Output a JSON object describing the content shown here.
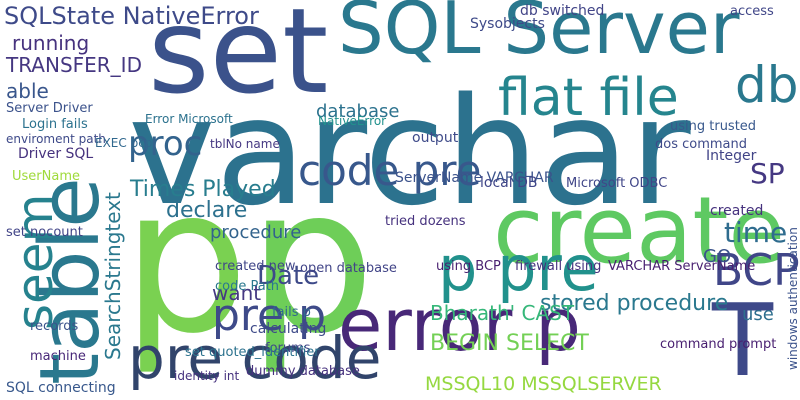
{
  "words": [
    {
      "text": "varchar"
    },
    {
      "text": "set"
    },
    {
      "text": "p"
    },
    {
      "text": "p"
    },
    {
      "text": "create"
    },
    {
      "text": "SQL Server"
    },
    {
      "text": "table"
    },
    {
      "text": "seem"
    },
    {
      "text": "error p"
    },
    {
      "text": "pre code"
    },
    {
      "text": "pre p"
    },
    {
      "text": "code pre"
    },
    {
      "text": "p pre"
    },
    {
      "text": "flat file"
    },
    {
      "text": "db"
    },
    {
      "text": "BCP"
    },
    {
      "text": "T"
    },
    {
      "text": "SP"
    },
    {
      "text": "time"
    },
    {
      "text": "proc"
    },
    {
      "text": "Times Played"
    },
    {
      "text": "declare"
    },
    {
      "text": "SQLState NativeError"
    },
    {
      "text": "TRANSFER_ID"
    },
    {
      "text": "running"
    },
    {
      "text": "able"
    },
    {
      "text": "database"
    },
    {
      "text": "stored procedure"
    },
    {
      "text": "MSSQL10 MSSQLSERVER"
    },
    {
      "text": "BEGIN SELECT"
    },
    {
      "text": "Bharath' CAST"
    },
    {
      "text": "SearchStringtext"
    },
    {
      "text": "procedure"
    },
    {
      "text": "Date"
    },
    {
      "text": "want"
    },
    {
      "text": "Server Driver"
    },
    {
      "text": "Login fails"
    },
    {
      "text": "enviroment path"
    },
    {
      "text": "Driver SQL"
    },
    {
      "text": "UserName"
    },
    {
      "text": "set nocount"
    },
    {
      "text": "machine"
    },
    {
      "text": "SQL connecting"
    },
    {
      "text": "records"
    },
    {
      "text": "Error Microsoft"
    },
    {
      "text": "NativeError"
    },
    {
      "text": "EXEC bcp"
    },
    {
      "text": "tblNo name"
    },
    {
      "text": "ServerName VARCHAR"
    },
    {
      "text": "open database"
    },
    {
      "text": "created new"
    },
    {
      "text": "code Path"
    },
    {
      "text": "fails p"
    },
    {
      "text": "calculating"
    },
    {
      "text": "forums"
    },
    {
      "text": "set quoted_identifier"
    },
    {
      "text": "dummy database"
    },
    {
      "text": "identity int"
    },
    {
      "text": "local DB"
    },
    {
      "text": "Microsoft ODBC"
    },
    {
      "text": "using BCP"
    },
    {
      "text": "VARCHAR ServerName"
    },
    {
      "text": "firewall using"
    },
    {
      "text": "GO"
    },
    {
      "text": "use"
    },
    {
      "text": "command prompt"
    },
    {
      "text": "Integer"
    },
    {
      "text": "created"
    },
    {
      "text": "output"
    },
    {
      "text": "dos command"
    },
    {
      "text": "using trusted"
    },
    {
      "text": "access"
    },
    {
      "text": "db switched"
    },
    {
      "text": "Sysobjects"
    },
    {
      "text": "tried dozens"
    },
    {
      "text": "windows authentication"
    }
  ]
}
